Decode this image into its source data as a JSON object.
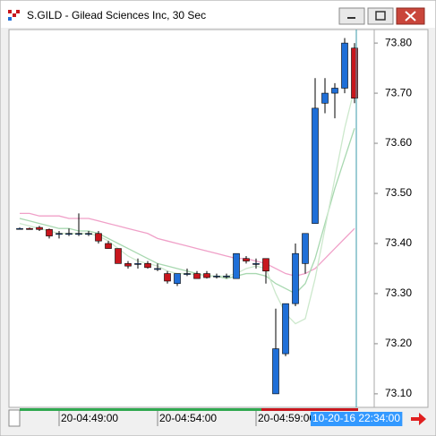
{
  "chart_data": {
    "type": "candlestick",
    "title": "S.GILD - Gilead Sciences Inc, 30 Sec",
    "open": [
      73.43,
      73.43,
      73.432,
      73.428,
      73.42,
      73.42,
      73.42,
      73.42,
      73.42,
      73.4,
      73.39,
      73.36,
      73.36,
      73.36,
      73.35,
      73.34,
      73.32,
      73.34,
      73.34,
      73.34,
      73.335,
      73.335,
      73.33,
      73.37,
      73.36,
      73.37,
      73.1,
      73.18,
      73.28,
      73.36,
      73.44,
      73.68,
      73.7,
      73.71,
      73.79
    ],
    "high": [
      73.432,
      73.432,
      73.435,
      73.43,
      73.425,
      73.43,
      73.46,
      73.425,
      73.425,
      73.405,
      73.39,
      73.365,
      73.37,
      73.365,
      73.36,
      73.345,
      73.34,
      73.35,
      73.345,
      73.345,
      73.34,
      73.34,
      73.38,
      73.375,
      73.37,
      73.37,
      73.27,
      73.28,
      73.4,
      73.42,
      73.73,
      73.73,
      73.72,
      73.81,
      73.8
    ],
    "low": [
      73.428,
      73.428,
      73.425,
      73.41,
      73.41,
      73.415,
      73.415,
      73.415,
      73.4,
      73.39,
      73.36,
      73.35,
      73.35,
      73.35,
      73.345,
      73.32,
      73.315,
      73.335,
      73.33,
      73.33,
      73.33,
      73.33,
      73.33,
      73.36,
      73.35,
      73.32,
      73.1,
      73.175,
      73.275,
      73.34,
      73.44,
      73.66,
      73.65,
      73.7,
      73.68
    ],
    "close": [
      73.43,
      73.428,
      73.428,
      73.415,
      73.42,
      73.42,
      73.42,
      73.42,
      73.405,
      73.39,
      73.36,
      73.355,
      73.36,
      73.352,
      73.35,
      73.325,
      73.34,
      73.34,
      73.33,
      73.332,
      73.335,
      73.335,
      73.38,
      73.365,
      73.36,
      73.345,
      73.19,
      73.28,
      73.38,
      73.42,
      73.67,
      73.7,
      73.71,
      73.8,
      73.69
    ],
    "up_color": "#1f6fd8",
    "down_color": "#c8161d",
    "overlays": [
      {
        "color": "#f0a0c8",
        "values": [
          73.46,
          73.46,
          73.455,
          73.455,
          73.455,
          73.45,
          73.45,
          73.45,
          73.445,
          73.44,
          73.435,
          73.43,
          73.425,
          73.42,
          73.41,
          73.405,
          73.4,
          73.395,
          73.39,
          73.385,
          73.38,
          73.375,
          73.37,
          73.37,
          73.365,
          73.36,
          73.35,
          73.34,
          73.335,
          73.34,
          73.35,
          73.37,
          73.39,
          73.41,
          73.43
        ]
      },
      {
        "color": "#a8d8b0",
        "values": [
          73.45,
          73.445,
          73.44,
          73.435,
          73.43,
          73.43,
          73.425,
          73.425,
          73.42,
          73.41,
          73.4,
          73.39,
          73.38,
          73.37,
          73.36,
          73.355,
          73.35,
          73.345,
          73.34,
          73.335,
          73.335,
          73.33,
          73.335,
          73.34,
          73.34,
          73.335,
          73.32,
          73.31,
          73.3,
          73.32,
          73.37,
          73.44,
          73.51,
          73.57,
          73.63
        ]
      },
      {
        "color": "#cce8cc",
        "values": [
          73.44,
          73.435,
          73.43,
          73.425,
          73.42,
          73.42,
          73.42,
          73.42,
          73.415,
          73.405,
          73.39,
          73.375,
          73.365,
          73.36,
          73.355,
          73.345,
          73.34,
          73.34,
          73.338,
          73.336,
          73.335,
          73.335,
          73.34,
          73.35,
          73.355,
          73.35,
          73.3,
          73.26,
          73.24,
          73.25,
          73.33,
          73.43,
          73.53,
          73.63,
          73.71
        ]
      }
    ],
    "ylim": [
      73.073,
      73.827
    ],
    "yticks": [
      {
        "value": 73.1,
        "label": "73.10"
      },
      {
        "value": 73.2,
        "label": "73.20"
      },
      {
        "value": 73.3,
        "label": "73.30"
      },
      {
        "value": 73.4,
        "label": "73.40"
      },
      {
        "value": 73.5,
        "label": "73.50"
      },
      {
        "value": 73.6,
        "label": "73.60"
      },
      {
        "value": 73.7,
        "label": "73.70"
      },
      {
        "value": 73.8,
        "label": "73.80"
      }
    ],
    "xticks": [
      {
        "value": 4,
        "label": "20-04:49:00"
      },
      {
        "value": 14,
        "label": "20-04:54:00"
      },
      {
        "value": 24,
        "label": "20-04:59:00"
      }
    ],
    "cursor": {
      "value": 34,
      "label": "10-20-16 22:34:00"
    }
  }
}
